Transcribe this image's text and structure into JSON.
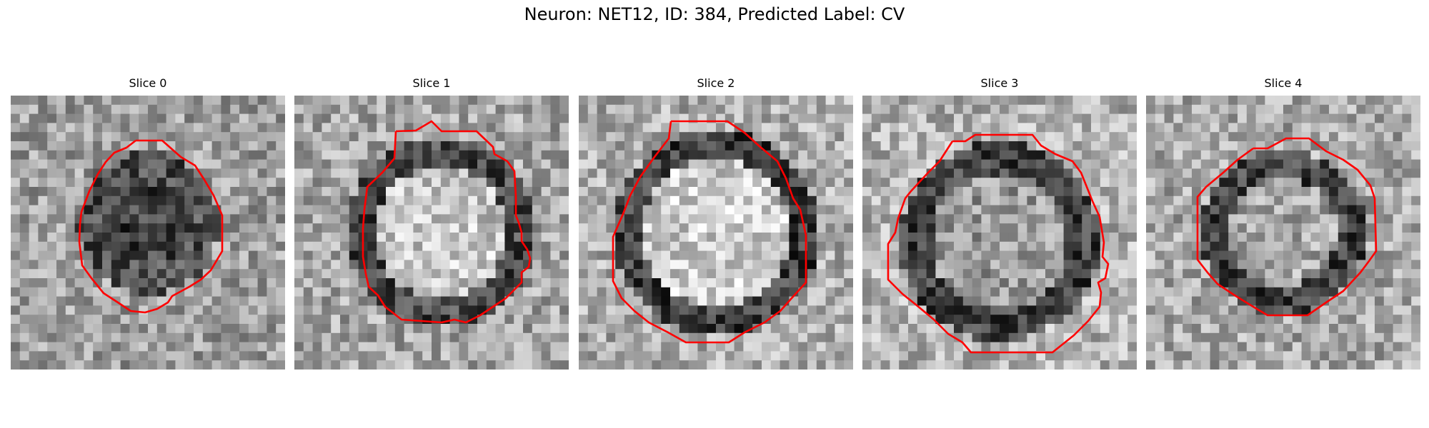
{
  "figure": {
    "title": "Neuron: NET12, ID: 384, Predicted Label: CV"
  },
  "panels": [
    {
      "title": "Slice 0",
      "contour_color": "#ff0000"
    },
    {
      "title": "Slice 1",
      "contour_color": "#ff0000"
    },
    {
      "title": "Slice 2",
      "contour_color": "#ff0000"
    },
    {
      "title": "Slice 3",
      "contour_color": "#ff0000"
    },
    {
      "title": "Slice 4",
      "contour_color": "#ff0000"
    }
  ],
  "colors": {
    "contour": "#ff0000",
    "background": "#ffffff"
  }
}
